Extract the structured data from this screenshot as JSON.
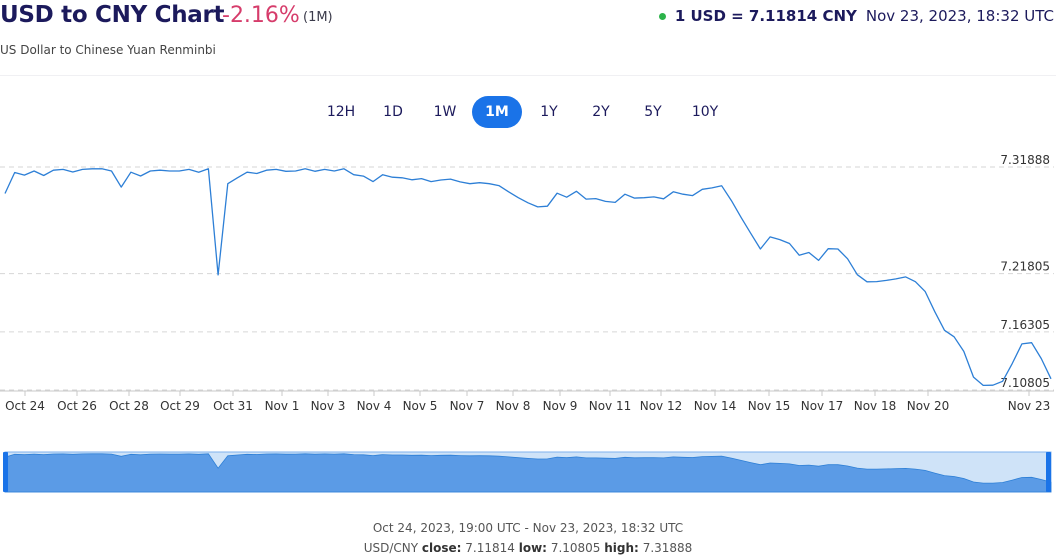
{
  "header": {
    "title": "USD to CNY Chart",
    "change": "-2.16%",
    "period": "(1M)",
    "subtitle": "US Dollar to Chinese Yuan Renminbi",
    "rate": "1 USD = 7.11814 CNY",
    "timestamp": "Nov 23, 2023, 18:32 UTC"
  },
  "ranges": [
    {
      "label": "12H",
      "active": false
    },
    {
      "label": "1D",
      "active": false
    },
    {
      "label": "1W",
      "active": false
    },
    {
      "label": "1M",
      "active": true
    },
    {
      "label": "1Y",
      "active": false
    },
    {
      "label": "2Y",
      "active": false
    },
    {
      "label": "5Y",
      "active": false
    },
    {
      "label": "10Y",
      "active": false
    }
  ],
  "colors": {
    "line": "#2d7fd6",
    "navigator_fill": "#5b9be6",
    "navigator_bg": "#cfe3f8",
    "active_button": "#1a73e8",
    "change_negative": "#d63c6b",
    "live_dot": "#2cb34a"
  },
  "chart_data": {
    "type": "line",
    "title": "",
    "xlabel": "",
    "ylabel": "",
    "ylim": [
      7.10805,
      7.31888
    ],
    "y_ticks": [
      "7.31888",
      "7.21805",
      "7.16305",
      "7.10805"
    ],
    "x_ticks": [
      "Oct 24",
      "Oct 26",
      "Oct 28",
      "Oct 29",
      "Oct 31",
      "Nov 1",
      "Nov 3",
      "Nov 4",
      "Nov 5",
      "Nov 7",
      "Nov 8",
      "Nov 9",
      "Nov 11",
      "Nov 12",
      "Nov 14",
      "Nov 15",
      "Nov 17",
      "Nov 18",
      "Nov 20",
      "Nov 23"
    ],
    "grid": true,
    "series": [
      {
        "values": [
          7.2938,
          7.3137,
          7.3112,
          7.3151,
          7.3108,
          7.3159,
          7.3166,
          7.3142,
          7.3166,
          7.3172,
          7.3172,
          7.3151,
          7.2999,
          7.314,
          7.3104,
          7.3151,
          7.3159,
          7.3151,
          7.3151,
          7.3166,
          7.314,
          7.3172,
          7.2169,
          7.3031,
          7.3087,
          7.314,
          7.3127,
          7.3159,
          7.3166,
          7.3148,
          7.3151,
          7.3172,
          7.3148,
          7.3166,
          7.3151,
          7.3172,
          7.3116,
          7.3103,
          7.3051,
          7.3116,
          7.3092,
          7.3087,
          7.3068,
          7.3079,
          7.3051,
          7.3066,
          7.3074,
          7.3048,
          7.3031,
          7.304,
          7.3031,
          7.3013,
          7.2954,
          7.2899,
          7.285,
          7.2812,
          7.2818,
          7.2941,
          7.2903,
          7.2959,
          7.2885,
          7.289,
          7.2864,
          7.2854,
          7.2932,
          7.2895,
          7.2899,
          7.2906,
          7.2888,
          7.2954,
          7.2932,
          7.2918,
          7.2978,
          7.2991,
          7.3011,
          7.2871,
          7.2712,
          7.2561,
          7.2414,
          7.2528,
          7.2502,
          7.2466,
          7.2355,
          7.238,
          7.2306,
          7.2416,
          7.2414,
          7.2321,
          7.2171,
          7.2103,
          7.2105,
          7.2117,
          7.2131,
          7.215,
          7.2104,
          7.2013,
          7.1821,
          7.1645,
          7.1583,
          7.1445,
          7.1202,
          7.1124,
          7.1126,
          7.1163,
          7.1332,
          7.1516,
          7.1528,
          7.1377,
          7.1186
        ]
      }
    ],
    "navigator": {
      "range_label": "Oct 24, 2023, 19:00 UTC - Nov 23, 2023, 18:32 UTC",
      "summary_prefix": "USD/CNY",
      "close_label": "close:",
      "close_value": "7.11814",
      "low_label": "low:",
      "low_value": "7.10805",
      "high_label": "high:",
      "high_value": "7.31888"
    }
  }
}
